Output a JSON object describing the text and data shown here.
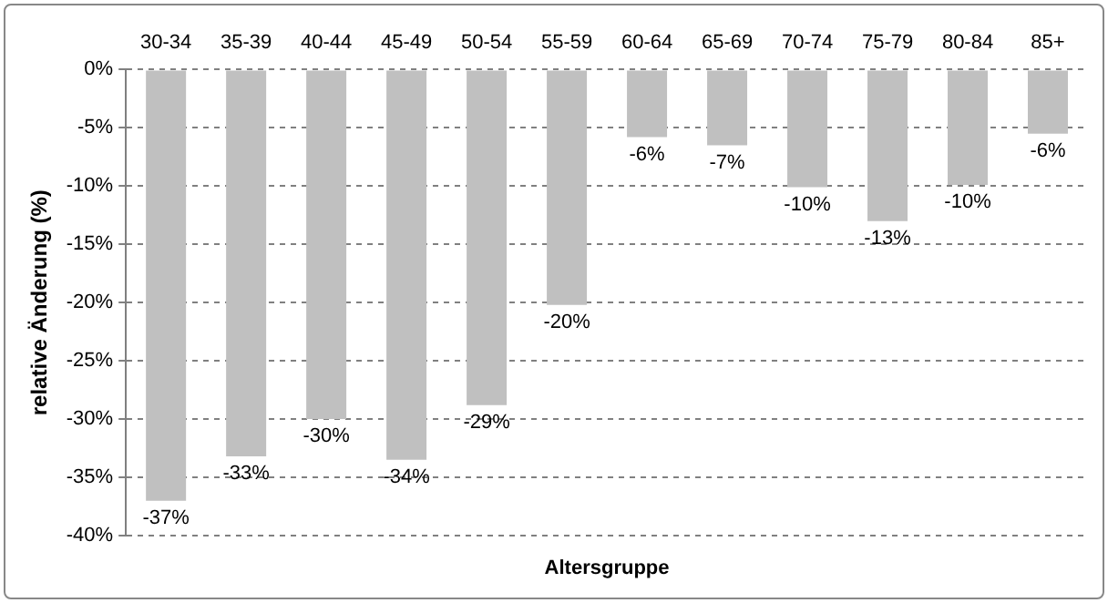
{
  "chart_data": {
    "type": "bar",
    "xlabel": "Altersgruppe",
    "ylabel": "relative Änderung (%)",
    "categories": [
      "30-34",
      "35-39",
      "40-44",
      "45-49",
      "50-54",
      "55-59",
      "60-64",
      "65-69",
      "70-74",
      "75-79",
      "80-84",
      "85+"
    ],
    "values": [
      -37,
      -33.2,
      -30,
      -33.5,
      -28.8,
      -20.2,
      -5.8,
      -6.5,
      -10.1,
      -13,
      -9.9,
      -5.5
    ],
    "value_labels": [
      "-37%",
      "-33%",
      "-30%",
      "-34%",
      "-29%",
      "-20%",
      "-6%",
      "-7%",
      "-10%",
      "-13%",
      "-10%",
      "-6%"
    ],
    "color": "#c0c0c0",
    "ylim": [
      -40,
      0
    ],
    "yticks": [
      {
        "value": 0,
        "label": "0%"
      },
      {
        "value": -5,
        "label": "-5%"
      },
      {
        "value": -10,
        "label": "-10%"
      },
      {
        "value": -15,
        "label": "-15%"
      },
      {
        "value": -20,
        "label": "-20%"
      },
      {
        "value": -25,
        "label": "-25%"
      },
      {
        "value": -30,
        "label": "-30%"
      },
      {
        "value": -35,
        "label": "-35%"
      },
      {
        "value": -40,
        "label": "-40%"
      }
    ],
    "grid": "y",
    "legend": false
  }
}
